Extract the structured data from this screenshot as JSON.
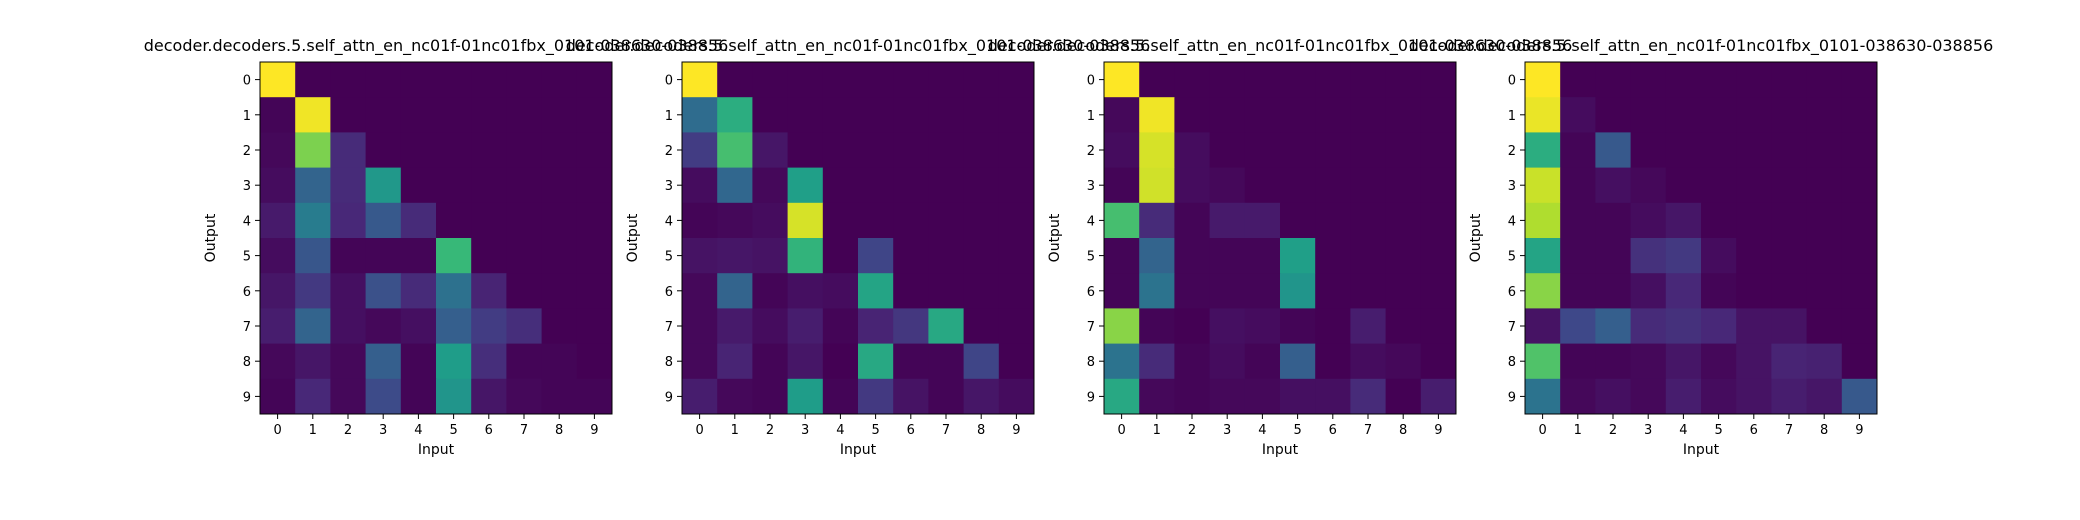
{
  "colormap": [
    "#440154",
    "#482878",
    "#3e4989",
    "#31688e",
    "#26828e",
    "#1f9e89",
    "#35b779",
    "#6ece58",
    "#b5de2b",
    "#fde725"
  ],
  "chart_data": [
    {
      "type": "heatmap",
      "title": "decoder.decoders.5.self_attn_en_nc01f-01nc01fbx_0101-038630-038856",
      "xlabel": "Input",
      "ylabel": "Output",
      "x": [
        "0",
        "1",
        "2",
        "3",
        "4",
        "5",
        "6",
        "7",
        "8",
        "9"
      ],
      "y": [
        "0",
        "1",
        "2",
        "3",
        "4",
        "5",
        "6",
        "7",
        "8",
        "9"
      ],
      "vmin": 0,
      "vmax": 1,
      "values": [
        [
          1.0,
          0.0,
          0.0,
          0.0,
          0.0,
          0.0,
          0.0,
          0.0,
          0.0,
          0.0
        ],
        [
          0.01,
          0.98,
          0.0,
          0.0,
          0.0,
          0.0,
          0.0,
          0.0,
          0.0,
          0.0
        ],
        [
          0.02,
          0.8,
          0.12,
          0.0,
          0.0,
          0.0,
          0.0,
          0.0,
          0.0,
          0.0
        ],
        [
          0.03,
          0.32,
          0.12,
          0.53,
          0.0,
          0.0,
          0.0,
          0.0,
          0.0,
          0.0
        ],
        [
          0.07,
          0.42,
          0.11,
          0.28,
          0.12,
          0.0,
          0.0,
          0.0,
          0.0,
          0.0
        ],
        [
          0.03,
          0.27,
          0.01,
          0.01,
          0.01,
          0.67,
          0.0,
          0.0,
          0.0,
          0.0
        ],
        [
          0.06,
          0.17,
          0.04,
          0.25,
          0.12,
          0.37,
          0.1,
          0.0,
          0.0,
          0.0
        ],
        [
          0.08,
          0.32,
          0.04,
          0.02,
          0.04,
          0.3,
          0.18,
          0.13,
          0.0,
          0.0
        ],
        [
          0.02,
          0.06,
          0.02,
          0.3,
          0.01,
          0.55,
          0.13,
          0.01,
          0.01,
          0.0
        ],
        [
          0.01,
          0.11,
          0.02,
          0.23,
          0.01,
          0.52,
          0.06,
          0.02,
          0.01,
          0.01
        ]
      ]
    },
    {
      "type": "heatmap",
      "title": "decoder.decoders.5.self_attn_en_nc01f-01nc01fbx_0101-038630-038856",
      "xlabel": "Input",
      "ylabel": "Output",
      "x": [
        "0",
        "1",
        "2",
        "3",
        "4",
        "5",
        "6",
        "7",
        "8",
        "9"
      ],
      "y": [
        "0",
        "1",
        "2",
        "3",
        "4",
        "5",
        "6",
        "7",
        "8",
        "9"
      ],
      "vmin": 0,
      "vmax": 1,
      "values": [
        [
          1.0,
          0.0,
          0.0,
          0.0,
          0.0,
          0.0,
          0.0,
          0.0,
          0.0,
          0.0
        ],
        [
          0.35,
          0.62,
          0.0,
          0.0,
          0.0,
          0.0,
          0.0,
          0.0,
          0.0,
          0.0
        ],
        [
          0.18,
          0.7,
          0.06,
          0.0,
          0.0,
          0.0,
          0.0,
          0.0,
          0.0,
          0.0
        ],
        [
          0.03,
          0.33,
          0.02,
          0.56,
          0.0,
          0.0,
          0.0,
          0.0,
          0.0,
          0.0
        ],
        [
          0.01,
          0.02,
          0.03,
          0.94,
          0.0,
          0.0,
          0.0,
          0.0,
          0.0,
          0.0
        ],
        [
          0.05,
          0.06,
          0.05,
          0.65,
          0.0,
          0.21,
          0.0,
          0.0,
          0.0,
          0.0
        ],
        [
          0.02,
          0.32,
          0.01,
          0.04,
          0.03,
          0.58,
          0.0,
          0.0,
          0.0,
          0.0
        ],
        [
          0.02,
          0.07,
          0.03,
          0.08,
          0.01,
          0.1,
          0.16,
          0.6,
          0.0,
          0.0
        ],
        [
          0.02,
          0.1,
          0.01,
          0.06,
          0.0,
          0.6,
          0.01,
          0.01,
          0.21,
          0.0
        ],
        [
          0.08,
          0.02,
          0.01,
          0.55,
          0.01,
          0.17,
          0.05,
          0.01,
          0.06,
          0.03
        ]
      ]
    },
    {
      "type": "heatmap",
      "title": "decoder.decoders.5.self_attn_en_nc01f-01nc01fbx_0101-038630-038856",
      "xlabel": "Input",
      "ylabel": "Output",
      "x": [
        "0",
        "1",
        "2",
        "3",
        "4",
        "5",
        "6",
        "7",
        "8",
        "9"
      ],
      "y": [
        "0",
        "1",
        "2",
        "3",
        "4",
        "5",
        "6",
        "7",
        "8",
        "9"
      ],
      "vmin": 0,
      "vmax": 1,
      "values": [
        [
          1.0,
          0.0,
          0.0,
          0.0,
          0.0,
          0.0,
          0.0,
          0.0,
          0.0,
          0.0
        ],
        [
          0.02,
          0.98,
          0.0,
          0.0,
          0.0,
          0.0,
          0.0,
          0.0,
          0.0,
          0.0
        ],
        [
          0.03,
          0.94,
          0.03,
          0.0,
          0.0,
          0.0,
          0.0,
          0.0,
          0.0,
          0.0
        ],
        [
          0.01,
          0.93,
          0.03,
          0.02,
          0.0,
          0.0,
          0.0,
          0.0,
          0.0,
          0.0
        ],
        [
          0.7,
          0.12,
          0.01,
          0.07,
          0.07,
          0.0,
          0.0,
          0.0,
          0.0,
          0.0
        ],
        [
          0.01,
          0.32,
          0.01,
          0.01,
          0.01,
          0.56,
          0.0,
          0.0,
          0.0,
          0.0
        ],
        [
          0.01,
          0.38,
          0.01,
          0.01,
          0.01,
          0.52,
          0.0,
          0.0,
          0.0,
          0.0
        ],
        [
          0.82,
          0.01,
          0.0,
          0.04,
          0.03,
          0.01,
          0.0,
          0.08,
          0.0,
          0.0
        ],
        [
          0.38,
          0.12,
          0.01,
          0.03,
          0.01,
          0.3,
          0.0,
          0.03,
          0.02,
          0.0
        ],
        [
          0.6,
          0.02,
          0.01,
          0.02,
          0.02,
          0.04,
          0.04,
          0.12,
          0.0,
          0.08
        ]
      ]
    },
    {
      "type": "heatmap",
      "title": "decoder.decoders.5.self_attn_en_nc01f-01nc01fbx_0101-038630-038856",
      "xlabel": "Input",
      "ylabel": "Output",
      "x": [
        "0",
        "1",
        "2",
        "3",
        "4",
        "5",
        "6",
        "7",
        "8",
        "9"
      ],
      "y": [
        "0",
        "1",
        "2",
        "3",
        "4",
        "5",
        "6",
        "7",
        "8",
        "9"
      ],
      "vmin": 0,
      "vmax": 1,
      "values": [
        [
          1.0,
          0.0,
          0.0,
          0.0,
          0.0,
          0.0,
          0.0,
          0.0,
          0.0,
          0.0
        ],
        [
          0.97,
          0.03,
          0.0,
          0.0,
          0.0,
          0.0,
          0.0,
          0.0,
          0.0,
          0.0
        ],
        [
          0.62,
          0.01,
          0.28,
          0.0,
          0.0,
          0.0,
          0.0,
          0.0,
          0.0,
          0.0
        ],
        [
          0.92,
          0.01,
          0.04,
          0.02,
          0.0,
          0.0,
          0.0,
          0.0,
          0.0,
          0.0
        ],
        [
          0.88,
          0.01,
          0.01,
          0.03,
          0.06,
          0.0,
          0.0,
          0.0,
          0.0,
          0.0
        ],
        [
          0.58,
          0.01,
          0.01,
          0.14,
          0.17,
          0.03,
          0.0,
          0.0,
          0.0,
          0.0
        ],
        [
          0.82,
          0.01,
          0.01,
          0.04,
          0.11,
          0.01,
          0.0,
          0.0,
          0.0,
          0.0
        ],
        [
          0.05,
          0.22,
          0.3,
          0.12,
          0.14,
          0.11,
          0.05,
          0.05,
          0.0,
          0.0
        ],
        [
          0.72,
          0.01,
          0.01,
          0.02,
          0.06,
          0.02,
          0.05,
          0.1,
          0.09,
          0.0
        ],
        [
          0.38,
          0.02,
          0.04,
          0.02,
          0.08,
          0.03,
          0.05,
          0.08,
          0.06,
          0.28
        ]
      ]
    }
  ]
}
